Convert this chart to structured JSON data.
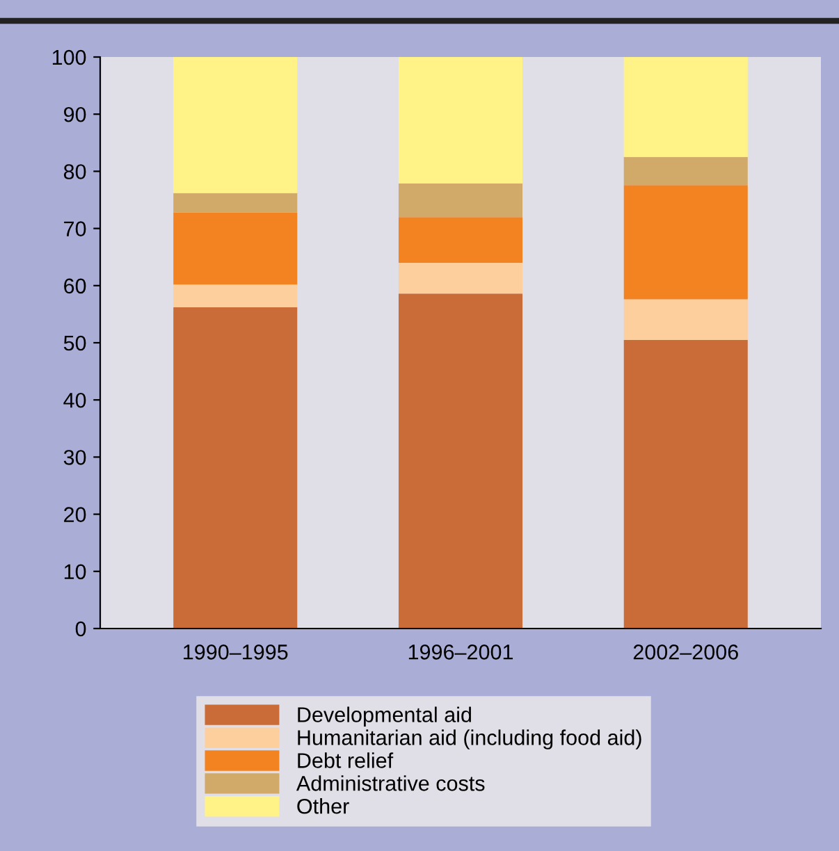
{
  "chart_data": {
    "type": "bar",
    "stacked": true,
    "categories": [
      "1990–1995",
      "1996–2001",
      "2002–2006"
    ],
    "series": [
      {
        "name": "Developmental aid",
        "color": "#c96c37",
        "values": [
          56.2,
          58.6,
          50.5
        ]
      },
      {
        "name": "Humanitarian aid (including food aid)",
        "color": "#fdcf9c",
        "values": [
          4.0,
          5.4,
          7.1
        ]
      },
      {
        "name": "Debt relief",
        "color": "#f38221",
        "values": [
          12.6,
          8.0,
          20.0
        ]
      },
      {
        "name": "Administrative costs",
        "color": "#d1a968",
        "values": [
          3.4,
          5.9,
          4.9
        ]
      },
      {
        "name": "Other",
        "color": "#fff388",
        "values": [
          23.8,
          22.1,
          17.5
        ]
      }
    ],
    "ylim": [
      0,
      100
    ],
    "yticks": [
      0,
      10,
      20,
      30,
      40,
      50,
      60,
      70,
      80,
      90,
      100
    ],
    "grid": false,
    "legend": "bottom"
  }
}
